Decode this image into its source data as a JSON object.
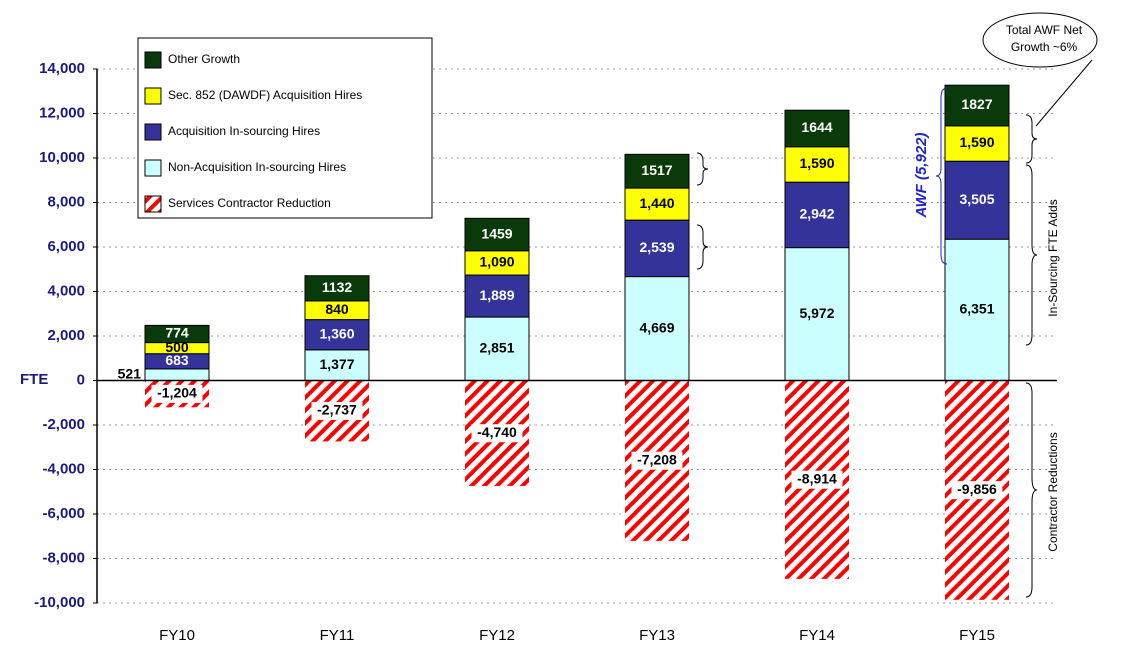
{
  "chart_data": {
    "type": "stacked_bar",
    "categories": [
      "FY10",
      "FY11",
      "FY12",
      "FY13",
      "FY14",
      "FY15"
    ],
    "series": [
      {
        "name": "Non-Acquisition In-sourcing Hires",
        "color": "#ccffff",
        "values": [
          521,
          1377,
          2851,
          4669,
          5972,
          6351
        ],
        "value_labels": [
          "521",
          "1,377",
          "2,851",
          "4,669",
          "5,972",
          "6,351"
        ]
      },
      {
        "name": "Acquisition In-sourcing Hires",
        "color": "#333399",
        "values": [
          683,
          1360,
          1889,
          2539,
          2942,
          3505
        ],
        "value_labels": [
          "683",
          "1,360",
          "1,889",
          "2,539",
          "2,942",
          "3,505"
        ]
      },
      {
        "name": "Sec. 852 (DAWDF) Acquisition Hires",
        "color": "#ffff00",
        "values": [
          500,
          840,
          1090,
          1440,
          1590,
          1590
        ],
        "value_labels": [
          "500",
          "840",
          "1,090",
          "1,440",
          "1,590",
          "1,590"
        ]
      },
      {
        "name": "Other Growth",
        "color": "#0a3a0a",
        "values": [
          774,
          1132,
          1459,
          1517,
          1644,
          1827
        ]
      },
      {
        "name": "Services Contractor Reduction",
        "color": "#ff0000",
        "pattern": "diagonal",
        "values": [
          -1204,
          -2737,
          -4740,
          -7208,
          -8914,
          -9856
        ],
        "value_labels": [
          "-1,204",
          "-2,737",
          "-4,740",
          "-7,208",
          "-8,914",
          "-9,856"
        ]
      }
    ],
    "ylim": [
      -10000,
      14000
    ],
    "yticks": [
      {
        "value": -10000,
        "label": "-10,000"
      },
      {
        "value": -8000,
        "label": "-8,000"
      },
      {
        "value": -6000,
        "label": "-6,000"
      },
      {
        "value": -4000,
        "label": "-4,000"
      },
      {
        "value": -2000,
        "label": "-2,000"
      },
      0,
      {
        "value": 2000,
        "label": "2,000"
      },
      {
        "value": 4000,
        "label": "4,000"
      },
      {
        "value": 6000,
        "label": "6,000"
      },
      {
        "value": 8000,
        "label": "8,000"
      },
      {
        "value": 10000,
        "label": "10,000"
      },
      {
        "value": 12000,
        "label": "12,000"
      },
      {
        "value": 14000,
        "label": "14,000"
      }
    ],
    "ylabel": "FTE",
    "grid": true,
    "legend": "upper left",
    "annotations": {
      "callout": [
        "Total AWF Net",
        "Growth ~6%"
      ],
      "awf": "AWF (5,922)",
      "in_sourcing": "In-Sourcing FTE Adds",
      "contractor": "Contractor Reductions"
    }
  }
}
